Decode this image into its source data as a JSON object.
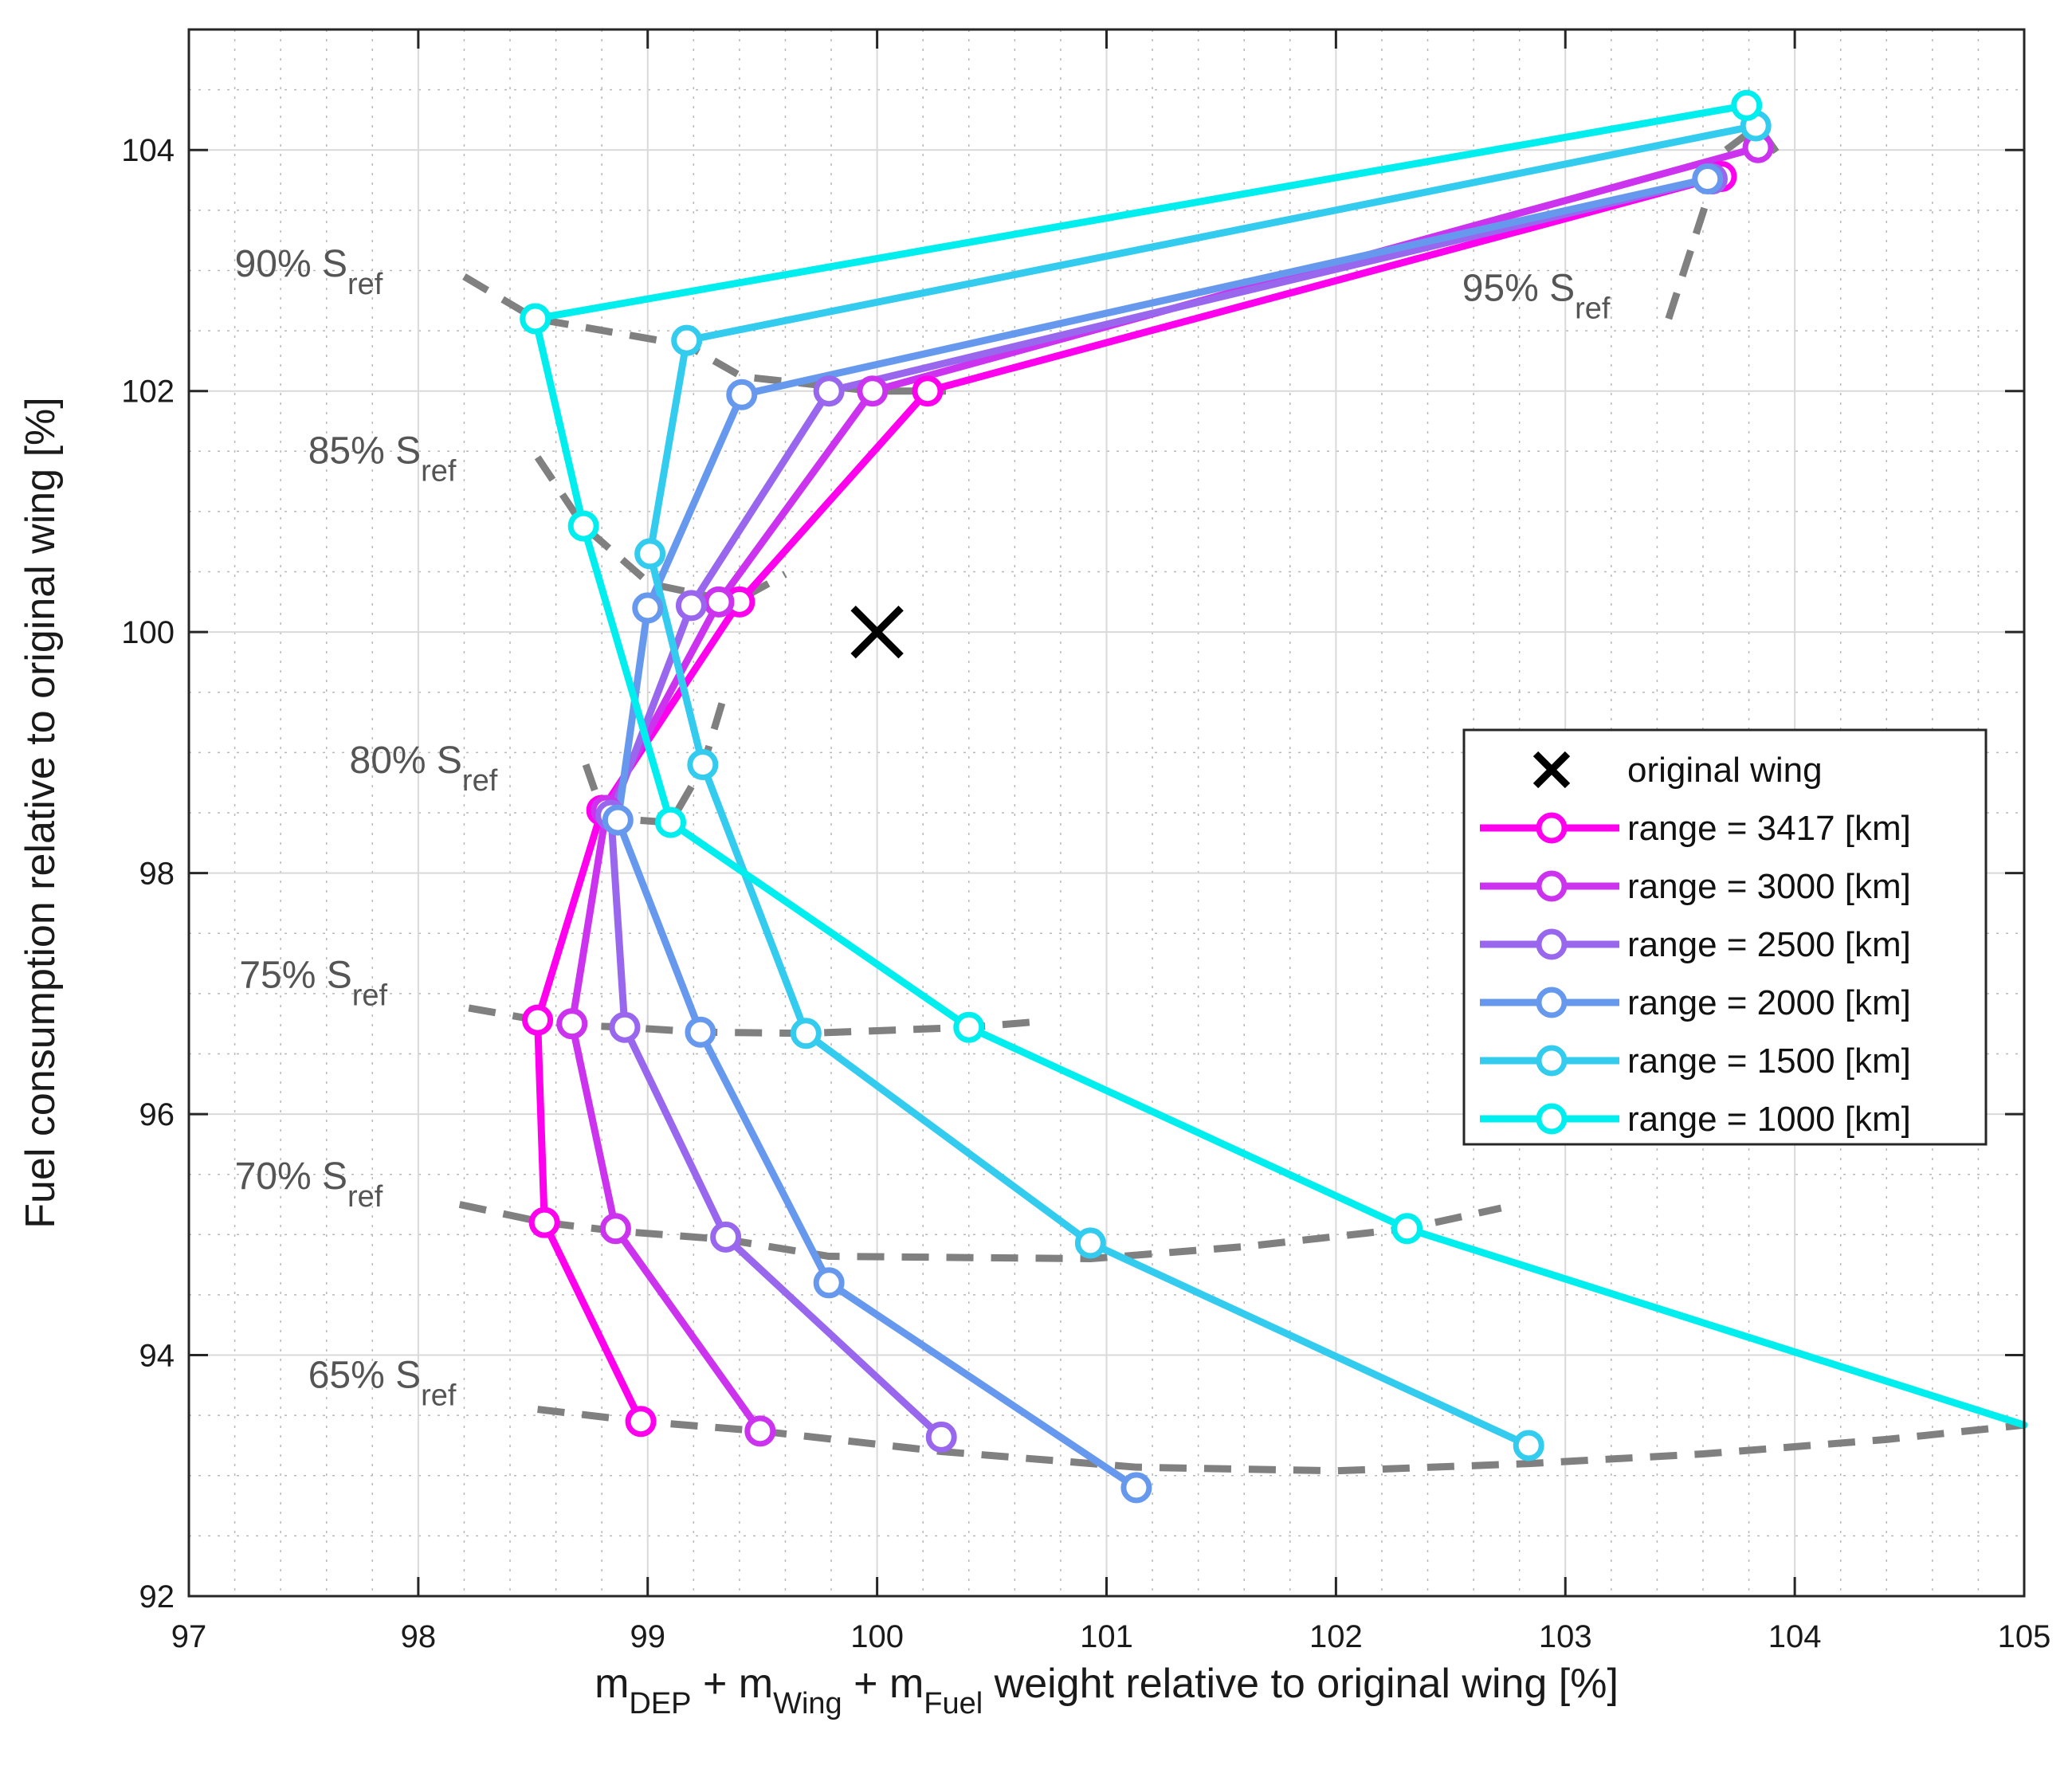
{
  "chart_data": {
    "type": "line",
    "xlabel": {
      "parts": [
        {
          "text": "m",
          "sub": false
        },
        {
          "text": "DEP",
          "sub": true
        },
        {
          "text": " + m",
          "sub": false
        },
        {
          "text": "Wing",
          "sub": true
        },
        {
          "text": " + m",
          "sub": false
        },
        {
          "text": "Fuel",
          "sub": true
        },
        {
          "text": " weight relative to original wing [%]",
          "sub": false
        }
      ]
    },
    "ylabel": "Fuel consumption relative to original wing [%]",
    "xlim": [
      97,
      105
    ],
    "ylim": [
      92,
      105
    ],
    "x_ticks": [
      97,
      98,
      99,
      100,
      101,
      102,
      103,
      104,
      105
    ],
    "y_ticks": [
      92,
      94,
      96,
      98,
      100,
      102,
      104
    ],
    "x_tick_labels": [
      "97",
      "98",
      "99",
      "100",
      "101",
      "102",
      "103",
      "104",
      "105"
    ],
    "y_tick_labels": [
      "92",
      "94",
      "96",
      "98",
      "100",
      "102",
      "104"
    ],
    "grid": true,
    "minor_grid": true,
    "legend_position": "right",
    "original_wing": {
      "label": "original wing",
      "x": 100.0,
      "y": 100.0
    },
    "series": [
      {
        "name": "range = 3417 [km]",
        "color": "#ff00ee",
        "x": [
          103.68,
          100.22,
          99.4,
          98.8,
          98.52,
          98.55,
          98.97
        ],
        "y": [
          103.78,
          102.0,
          100.25,
          98.52,
          96.78,
          95.1,
          93.45
        ]
      },
      {
        "name": "range = 3000 [km]",
        "color": "#cc33ee",
        "x": [
          103.84,
          99.98,
          99.31,
          98.82,
          98.67,
          98.86,
          99.49
        ],
        "y": [
          104.02,
          102.0,
          100.25,
          98.52,
          96.75,
          95.05,
          93.37
        ]
      },
      {
        "name": "range = 2500 [km]",
        "color": "#9966ee",
        "x": [
          103.64,
          99.79,
          99.19,
          98.84,
          98.9,
          99.34,
          100.28
        ],
        "y": [
          103.76,
          102.0,
          100.22,
          98.48,
          96.72,
          94.98,
          93.32
        ]
      },
      {
        "name": "range = 2000 [km]",
        "color": "#6699ee",
        "x": [
          103.62,
          99.41,
          99.0,
          98.87,
          99.23,
          99.79,
          101.13
        ],
        "y": [
          103.76,
          101.97,
          100.2,
          98.44,
          96.68,
          94.6,
          92.9
        ]
      },
      {
        "name": "range = 1500 [km]",
        "color": "#33ccee",
        "x": [
          103.83,
          99.17,
          99.01,
          99.24,
          99.69,
          100.93,
          102.84
        ],
        "y": [
          104.2,
          102.42,
          100.65,
          98.9,
          96.67,
          94.93,
          93.25
        ]
      },
      {
        "name": "range = 1000 [km]",
        "color": "#00eeee",
        "x": [
          103.79,
          98.51,
          98.72,
          99.1,
          100.4,
          102.31,
          105.0
        ],
        "y": [
          104.37,
          102.6,
          100.88,
          98.42,
          96.72,
          95.05,
          93.42
        ]
      }
    ],
    "sref_curves": [
      {
        "label": "90% S",
        "sub": "ref",
        "label_x": 97.2,
        "label_y": 102.95,
        "x": [
          98.2,
          98.51,
          99.17,
          99.41,
          99.98,
          100.22,
          100.3
        ],
        "y": [
          102.95,
          102.6,
          102.38,
          102.12,
          102.0,
          102.0,
          102.0
        ]
      },
      {
        "label": "85% S",
        "sub": "ref",
        "label_x": 97.52,
        "label_y": 101.4,
        "x": [
          98.52,
          98.72,
          99.01,
          99.31,
          99.4,
          99.6
        ],
        "y": [
          101.45,
          100.88,
          100.4,
          100.28,
          100.27,
          100.48
        ]
      },
      {
        "label": "80% S",
        "sub": "ref",
        "label_x": 97.7,
        "label_y": 98.83,
        "x": [
          98.73,
          98.8,
          98.87,
          99.1,
          99.24,
          99.33
        ],
        "y": [
          98.9,
          98.52,
          98.45,
          98.42,
          98.88,
          99.45
        ]
      },
      {
        "label": "75% S",
        "sub": "ref",
        "label_x": 97.22,
        "label_y": 97.05,
        "x": [
          98.22,
          98.52,
          98.67,
          98.9,
          99.23,
          99.69,
          100.4,
          100.72
        ],
        "y": [
          96.88,
          96.78,
          96.74,
          96.72,
          96.68,
          96.67,
          96.72,
          96.77
        ]
      },
      {
        "label": "70% S",
        "sub": "ref",
        "label_x": 97.2,
        "label_y": 95.38,
        "x": [
          98.18,
          98.55,
          98.86,
          99.34,
          99.79,
          100.93,
          101.6,
          102.31,
          102.72
        ],
        "y": [
          95.25,
          95.1,
          95.03,
          94.96,
          94.82,
          94.8,
          94.9,
          95.05,
          95.22
        ]
      },
      {
        "label": "65% S",
        "sub": "ref",
        "label_x": 97.52,
        "label_y": 93.73,
        "x": [
          98.52,
          98.97,
          99.49,
          100.28,
          101.13,
          102.0,
          102.84,
          103.6,
          104.4,
          105.0
        ],
        "y": [
          93.55,
          93.45,
          93.37,
          93.2,
          93.07,
          93.04,
          93.1,
          93.18,
          93.3,
          93.42
        ]
      },
      {
        "label": "95% S",
        "sub": "ref",
        "label_x": 102.55,
        "label_y": 102.75,
        "x": [
          103.45,
          103.62,
          103.7,
          103.84,
          103.95
        ],
        "y": [
          102.6,
          103.6,
          104.0,
          104.2,
          103.9
        ]
      }
    ]
  }
}
